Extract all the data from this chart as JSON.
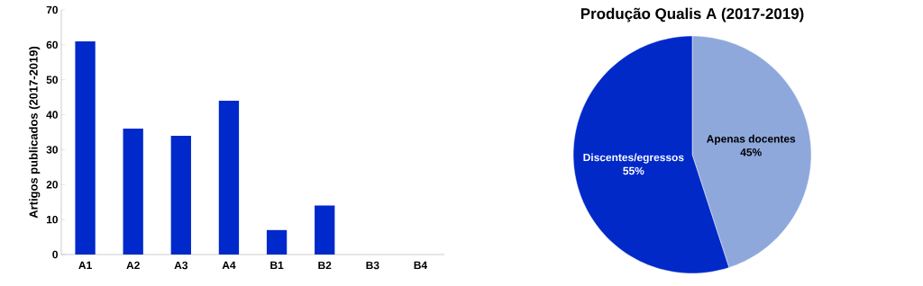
{
  "chart_data": [
    {
      "type": "bar",
      "ylabel": "Artigos publicados (2017-2019)",
      "categories": [
        "A1",
        "A2",
        "A3",
        "A4",
        "B1",
        "B2",
        "B3",
        "B4"
      ],
      "values": [
        61,
        36,
        34,
        44,
        7,
        14,
        0,
        0
      ],
      "color": "#0029cc",
      "ylim": [
        0,
        70
      ],
      "yticks": [
        0,
        10,
        20,
        30,
        40,
        50,
        60,
        70
      ]
    },
    {
      "type": "pie",
      "title": "Produção Qualis A (2017-2019)",
      "categories": [
        "Apenas docentes",
        "Discentes/egressos"
      ],
      "values": [
        45,
        55
      ],
      "colors": [
        "#8ea8dc",
        "#0029c8"
      ],
      "value_labels": [
        "45%",
        "55%"
      ]
    }
  ]
}
